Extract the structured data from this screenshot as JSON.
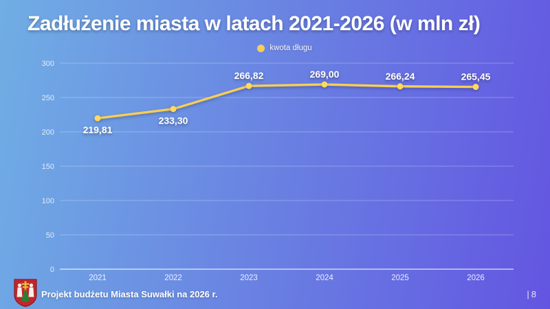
{
  "slide": {
    "title": "Zadłużenie miasta w latach 2021-2026 (w mln zł)"
  },
  "footer": {
    "text": "Projekt budżetu Miasta Suwałki na 2026 r.",
    "page_separator": "|",
    "page_number": "8"
  },
  "colors": {
    "bg_left": "#70AEE4",
    "bg_right": "#6355E1",
    "line": "#F6CE58",
    "point": "#FFD960",
    "grid": "rgba(255,255,255,0.28)",
    "axis": "rgba(255,255,255,0.70)",
    "text": "#FFFFFF"
  },
  "chart_data": {
    "type": "line",
    "title": "Zadłużenie miasta w latach 2021-2026 (w mln zł)",
    "legend": [
      "kwota długu"
    ],
    "legend_position": "top",
    "categories": [
      "2021",
      "2022",
      "2023",
      "2024",
      "2025",
      "2026"
    ],
    "series": [
      {
        "name": "kwota długu",
        "values": [
          219.81,
          233.3,
          266.82,
          269.0,
          266.24,
          265.45
        ],
        "labels": [
          "219,81",
          "233,30",
          "266,82",
          "269,00",
          "266,24",
          "265,45"
        ]
      }
    ],
    "xlabel": "",
    "ylabel": "",
    "ylim": [
      0,
      300
    ],
    "yticks": [
      0,
      50,
      100,
      150,
      200,
      250,
      300
    ],
    "grid": true
  }
}
